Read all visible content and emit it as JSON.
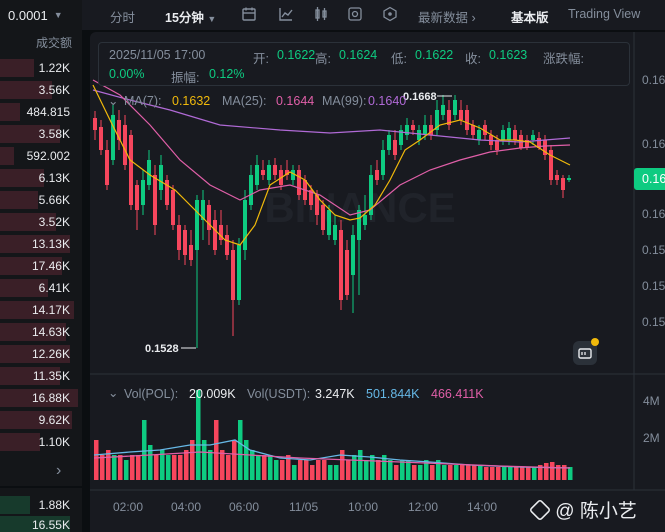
{
  "left_panel": {
    "price_precision": "0.0001",
    "column_header": "成交额",
    "amounts": [
      "1.22K",
      "3.56K",
      "484.815",
      "3.58K",
      "592.002",
      "6.13K",
      "5.66K",
      "3.52K",
      "13.13K",
      "17.46K",
      "6.41K",
      "14.17K",
      "14.63K",
      "12.26K",
      "11.35K",
      "16.88K",
      "9.62K",
      "1.10K"
    ],
    "amounts_bottom": [
      "1.88K",
      "16.55K"
    ],
    "expand_arrow": "›"
  },
  "toolbar": {
    "time_label": "分时",
    "interval_label": "15分钟",
    "latest_data_label": "最新数据",
    "basic_version_label": "基本版",
    "tradingview_label": "Trading View",
    "icons": [
      "calendar-icon",
      "indicator-icon",
      "candlestick-icon",
      "settings-icon",
      "hexagon-icon",
      "chevron-right-icon"
    ]
  },
  "ohlc": {
    "datetime": "2025/11/05 17:00",
    "open_label": "开:",
    "open": "0.1622",
    "high_label": "高:",
    "high": "0.1624",
    "low_label": "低:",
    "low": "0.1622",
    "close_label": "收:",
    "close": "0.1623",
    "change_label": "涨跌幅:",
    "change": "0.00%",
    "amplitude_label": "振幅:",
    "amplitude": "0.12%"
  },
  "ma": {
    "ma7_label": "MA(7):",
    "ma7": "0.1632",
    "ma25_label": "MA(25):",
    "ma25": "0.1644",
    "ma99_label": "MA(99):",
    "ma99": "0.1640"
  },
  "annotations": {
    "high_marker": "0.1668",
    "low_marker": "0.1528"
  },
  "price_axis": {
    "labels": [
      "0.16",
      "0.16",
      "0.16",
      "0.16",
      "0.15",
      "0.15",
      "0.15"
    ],
    "current_price": "0.16"
  },
  "volume": {
    "vol_pol_label": "Vol(POL):",
    "vol_pol": "20.009K",
    "vol_usdt_label": "Vol(USDT):",
    "vol_usdt": "3.247K",
    "ma_a": "501.844K",
    "ma_b": "466.411K",
    "axis_labels": [
      "4M",
      "2M"
    ]
  },
  "time_axis": [
    "02:00",
    "04:00",
    "06:00",
    "11/05",
    "10:00",
    "12:00",
    "14:00"
  ],
  "watermark": "BINANCE",
  "credit": "@ 陈小艺",
  "colors": {
    "up": "#0ecb81",
    "down": "#f6465d",
    "ma7": "#f0b90b",
    "ma25": "#e05fa8",
    "ma99": "#b06ad6",
    "vol_ma": "#66b8e6"
  }
}
